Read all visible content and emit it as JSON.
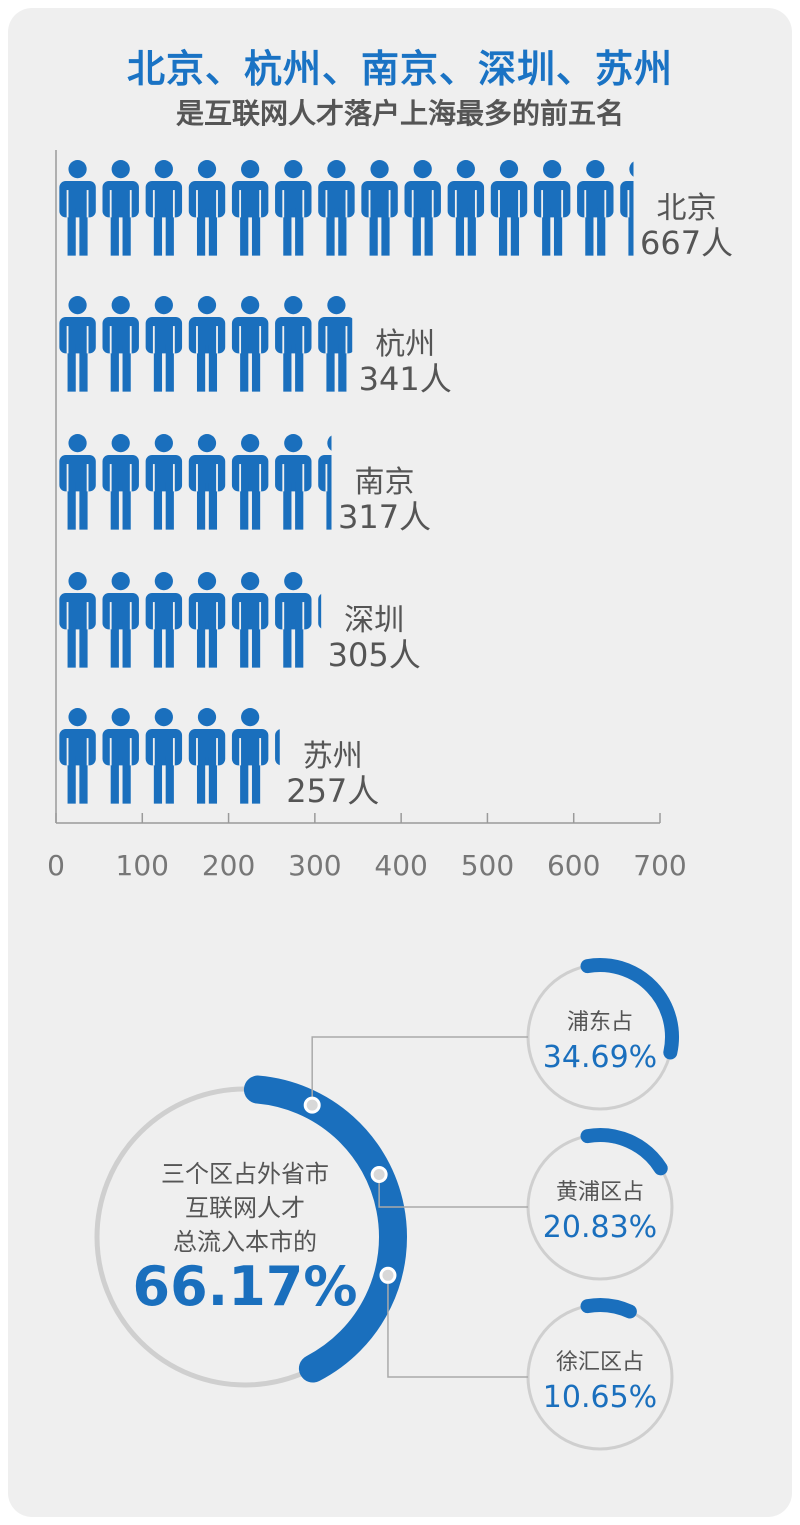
{
  "header": {
    "title": "北京、杭州、南京、深圳、苏州",
    "subtitle": "是互联网人才落户上海最多的前五名"
  },
  "colors": {
    "accent": "#1a6fbd",
    "text_dark": "#555555",
    "panel": "#efefef",
    "ring_gray": "#cfcfcf"
  },
  "icons": {
    "person": "person-icon"
  },
  "chart_data": [
    {
      "type": "bar",
      "title": "北京、杭州、南京、深圳、苏州",
      "subtitle": "是互联网人才落户上海最多的前五名",
      "categories": [
        "北京",
        "杭州",
        "南京",
        "深圳",
        "苏州"
      ],
      "values": [
        667,
        341,
        317,
        305,
        257
      ],
      "value_labels": [
        "667人",
        "341人",
        "317人",
        "305人",
        "257人"
      ],
      "orientation": "horizontal",
      "mark": "person-icon",
      "xlim": [
        0,
        700
      ],
      "xticks": [
        0,
        100,
        200,
        300,
        400,
        500,
        600,
        700
      ],
      "grid": false
    },
    {
      "type": "pie",
      "center_label_lines": [
        "三个区占外省市",
        "互联网人才",
        "总流入本市的"
      ],
      "total": 66.17,
      "total_label": "66.17%",
      "slices": [
        {
          "label": "浦东占",
          "value": 34.69,
          "value_label": "34.69%"
        },
        {
          "label": "黄浦区占",
          "value": 20.83,
          "value_label": "20.83%"
        },
        {
          "label": "徐汇区占",
          "value": 10.65,
          "value_label": "10.65%"
        }
      ]
    }
  ]
}
